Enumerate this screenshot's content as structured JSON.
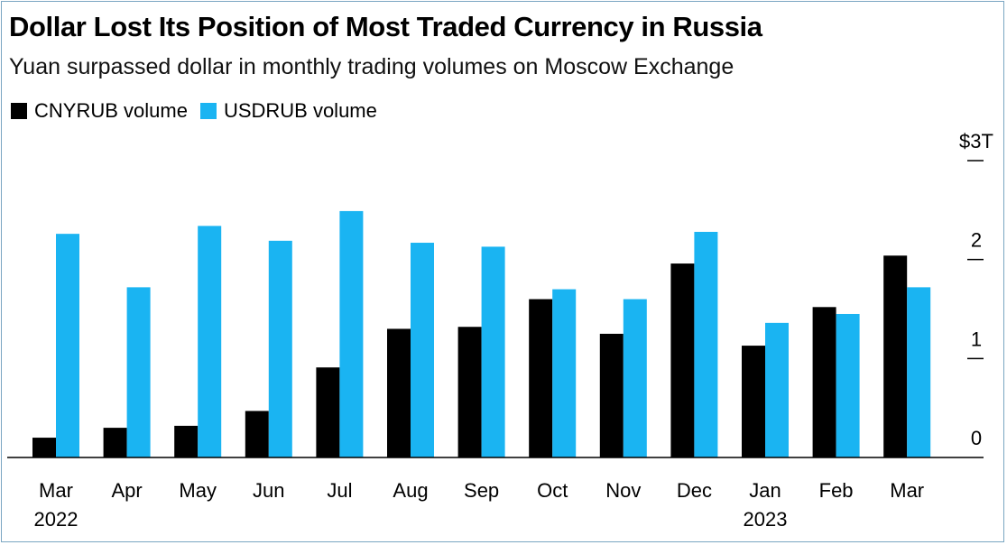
{
  "title": "Dollar Lost Its Position of Most Traded Currency in Russia",
  "subtitle": "Yuan surpassed dollar in monthly trading volumes on Moscow Exchange",
  "colors": {
    "cnyrub": "#000000",
    "usdrub": "#1ab4f2",
    "axis": "#000000"
  },
  "chart_data": {
    "type": "bar",
    "title": "Dollar Lost Its Position of Most Traded Currency in Russia",
    "subtitle": "Yuan surpassed dollar in monthly trading volumes on Moscow Exchange",
    "categories": [
      "Mar",
      "Apr",
      "May",
      "Jun",
      "Jul",
      "Aug",
      "Sep",
      "Oct",
      "Nov",
      "Dec",
      "Jan",
      "Feb",
      "Mar"
    ],
    "year_labels": [
      "2022",
      "",
      "",
      "",
      "",
      "",
      "",
      "",
      "",
      "",
      "2023",
      "",
      ""
    ],
    "series": [
      {
        "name": "CNYRUB volume",
        "values": [
          0.2,
          0.3,
          0.32,
          0.47,
          0.91,
          1.3,
          1.32,
          1.6,
          1.25,
          1.96,
          1.13,
          1.52,
          2.04
        ]
      },
      {
        "name": "USDRUB volume",
        "values": [
          2.26,
          1.72,
          2.34,
          2.19,
          2.49,
          2.17,
          2.13,
          1.7,
          1.6,
          2.28,
          1.36,
          1.45,
          1.72
        ]
      }
    ],
    "ylim": [
      0,
      3
    ],
    "yticks": [
      0,
      1,
      2,
      3
    ],
    "ytick_labels": [
      "0",
      "1",
      "2",
      "$3T"
    ],
    "xlabel": "",
    "ylabel": "",
    "legend_position": "top-left",
    "grid": false
  }
}
